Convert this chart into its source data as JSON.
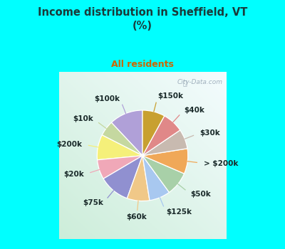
{
  "title": "Income distribution in Sheffield, VT\n(%)",
  "subtitle": "All residents",
  "title_color": "#1a3a3a",
  "subtitle_color": "#cc6600",
  "bg_cyan": "#00ffff",
  "watermark": "City-Data.com",
  "labels": [
    "$100k",
    "$10k",
    "$200k",
    "$20k",
    "$75k",
    "$60k",
    "$125k",
    "$50k",
    "> $200k",
    "$30k",
    "$40k",
    "$150k"
  ],
  "values": [
    12.0,
    5.5,
    9.0,
    7.0,
    11.0,
    8.0,
    7.5,
    8.5,
    9.0,
    7.0,
    7.5,
    8.0
  ],
  "colors": [
    "#b0a0d8",
    "#c5d8a0",
    "#f5f07a",
    "#f0a8b8",
    "#9090d0",
    "#f0c888",
    "#a8c8f0",
    "#a8d0a8",
    "#f0a858",
    "#c8bab0",
    "#e08888",
    "#c8a030"
  ],
  "label_fontsize": 7.5,
  "startangle": 90
}
